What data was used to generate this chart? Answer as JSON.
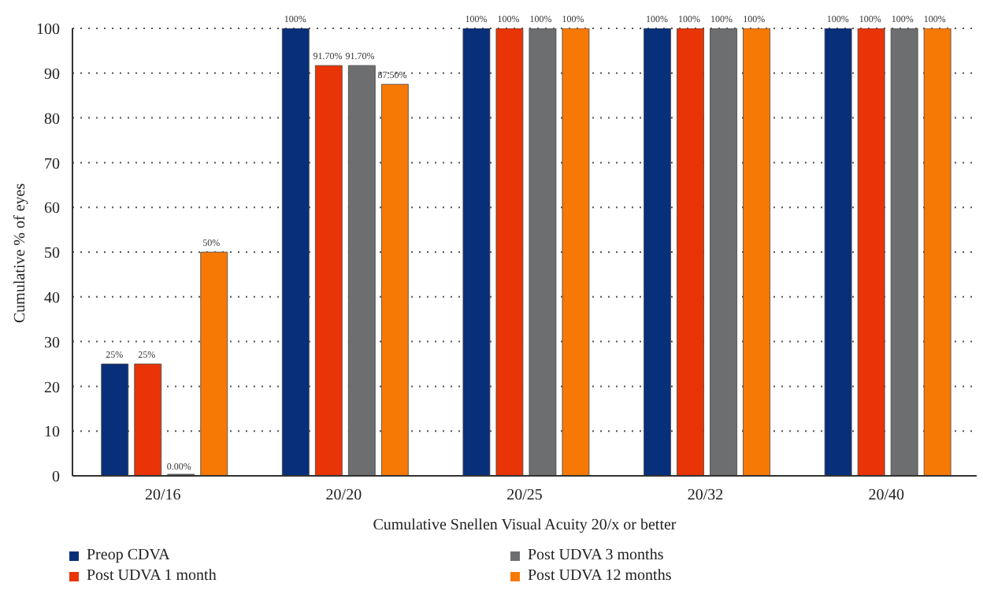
{
  "chart_data": {
    "type": "bar",
    "xlabel": "Cumulative Snellen Visual Acuity 20/x or better",
    "ylabel": "Cumulative % of eyes",
    "categories": [
      "20/16",
      "20/20",
      "20/25",
      "20/32",
      "20/40"
    ],
    "series": [
      {
        "name": "Preop CDVA",
        "color": "#082f7a",
        "values": [
          25,
          100,
          100,
          100,
          100
        ],
        "value_labels": [
          "25%",
          "100%",
          "100%",
          "100%",
          "100%"
        ]
      },
      {
        "name": "Post UDVA 1 month",
        "color": "#e83407",
        "values": [
          25,
          91.7,
          100,
          100,
          100
        ],
        "value_labels": [
          "25%",
          "91.70%",
          "100%",
          "100%",
          "100%"
        ]
      },
      {
        "name": "Post UDVA 3 months",
        "color": "#6d6e70",
        "values": [
          0,
          91.7,
          100,
          100,
          100
        ],
        "value_labels": [
          "0.00%",
          "91.70%",
          "100%",
          "100%",
          "100%"
        ]
      },
      {
        "name": "Post UDVA 12 months",
        "color": "#f77905",
        "values": [
          50,
          87.5,
          100,
          100,
          100
        ],
        "value_labels": [
          "50%",
          "87.50%",
          "100%",
          "100%",
          "100%"
        ]
      }
    ],
    "ylim": [
      0,
      100
    ],
    "yticks": [
      0,
      10,
      20,
      30,
      40,
      50,
      60,
      70,
      80,
      90,
      100
    ],
    "grid": "y",
    "legend": "bottom"
  }
}
